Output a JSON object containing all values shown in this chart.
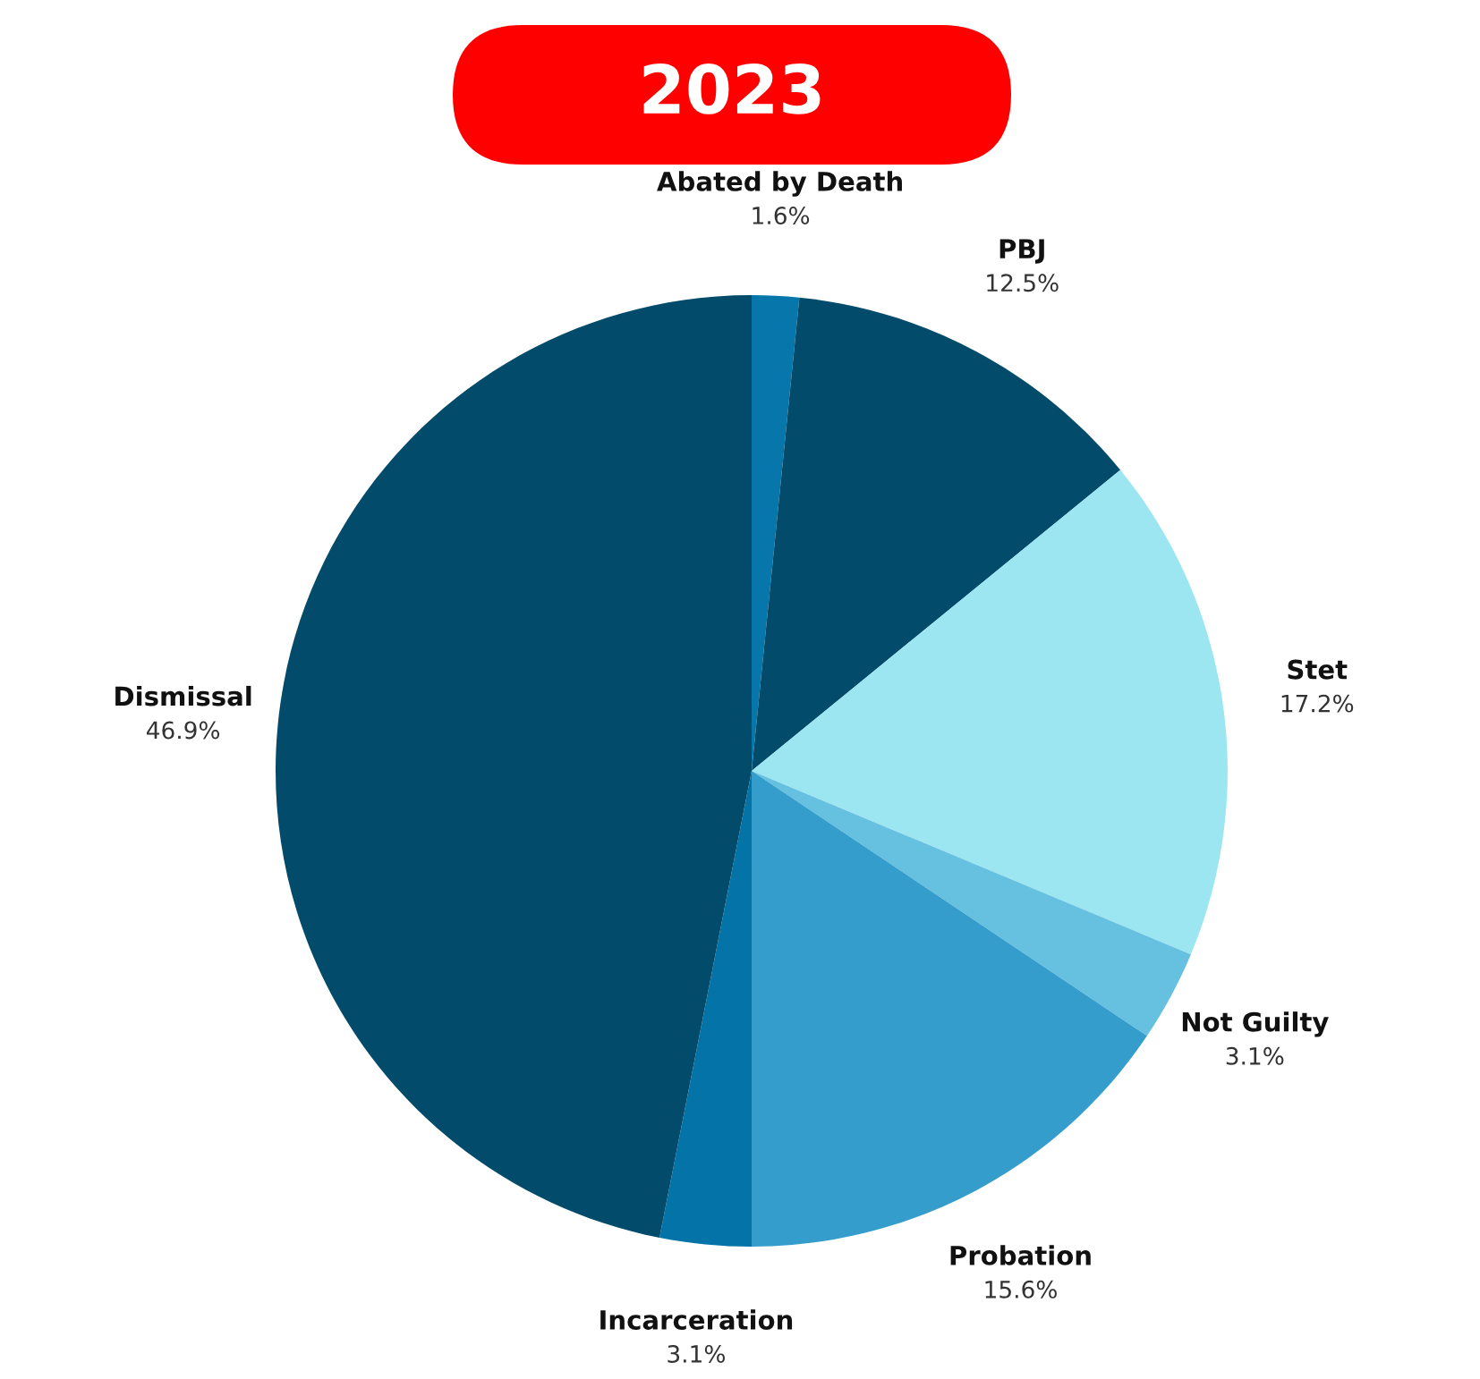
{
  "chart_data": {
    "type": "pie",
    "title": "2023",
    "categories": [
      "Abated by Death",
      "PBJ",
      "Stet",
      "Not Guilty",
      "Probation",
      "Incarceration",
      "Dismissal"
    ],
    "values": [
      1.6,
      12.5,
      17.2,
      3.1,
      15.6,
      3.1,
      46.9
    ],
    "colors": [
      "#0776aa",
      "#034b6b",
      "#9ce6f2",
      "#66c0e0",
      "#359dcb",
      "#0474a8",
      "#034b6b"
    ],
    "value_labels": [
      "1.6%",
      "12.5%",
      "17.2%",
      "3.1%",
      "15.6%",
      "3.1%",
      "46.9%"
    ]
  }
}
